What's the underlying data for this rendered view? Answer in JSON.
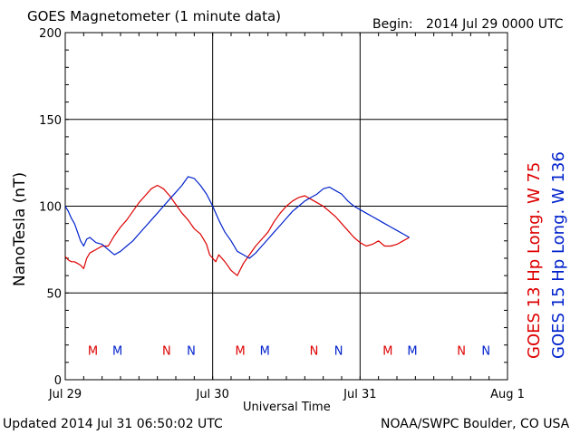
{
  "header": {
    "title": "GOES Magnetometer (1 minute data)",
    "begin_label": "Begin:",
    "begin_value": "2014 Jul 29 0000 UTC"
  },
  "footer": {
    "updated": "Updated 2014 Jul 31 06:50:02 UTC",
    "source": "NOAA/SWPC Boulder, CO USA"
  },
  "colors": {
    "goes13": "#dd0000",
    "goes15": "#0022cc",
    "grid": "#000000"
  },
  "chart_data": {
    "type": "line",
    "title": "GOES Magnetometer (1 minute data)",
    "xlabel": "Universal Time",
    "ylabel": "NanoTesla (nT)",
    "ylim": [
      0,
      200
    ],
    "yticks": [
      0,
      50,
      100,
      150,
      200
    ],
    "xlim": [
      0,
      72
    ],
    "xticks": [
      {
        "x": 0,
        "label": "Jul 29"
      },
      {
        "x": 24,
        "label": "Jul 30"
      },
      {
        "x": 48,
        "label": "Jul 31"
      },
      {
        "x": 72,
        "label": "Aug 1"
      }
    ],
    "grid": true,
    "series": [
      {
        "name": "GOES 13 Hp",
        "legend": "GOES 13 Hp   Long. W 75",
        "color": "#dd0000",
        "x": [
          0,
          0.5,
          1,
          1.5,
          2,
          2.5,
          3,
          3.5,
          4,
          5,
          6,
          7,
          8,
          9,
          10,
          11,
          12,
          13,
          14,
          15,
          16,
          17,
          18,
          19,
          20,
          21,
          22,
          23,
          23.5,
          24,
          24.5,
          25,
          26,
          27,
          28,
          29,
          30,
          31,
          32,
          33,
          34,
          35,
          36,
          37,
          38,
          39,
          40,
          41,
          42,
          43,
          44,
          45,
          46,
          47,
          48,
          49,
          50,
          51,
          52,
          53,
          54,
          55,
          56
        ],
        "values": [
          71,
          69,
          68,
          68,
          67,
          66,
          64,
          70,
          73,
          75,
          77,
          77,
          83,
          88,
          92,
          97,
          102,
          106,
          110,
          112,
          110,
          106,
          101,
          96,
          92,
          87,
          84,
          78,
          72,
          70,
          68,
          72,
          68,
          63,
          60,
          67,
          72,
          77,
          81,
          85,
          91,
          96,
          100,
          103,
          105,
          106,
          104,
          102,
          100,
          97,
          94,
          90,
          86,
          82,
          79,
          77,
          78,
          80,
          77,
          77,
          78,
          80,
          82
        ]
      },
      {
        "name": "GOES 15 Hp",
        "legend": "GOES 15 Hp   Long. W 136",
        "color": "#0022cc",
        "x": [
          0,
          0.5,
          1,
          1.5,
          2,
          2.5,
          3,
          3.5,
          4,
          5,
          6,
          7,
          8,
          9,
          10,
          11,
          12,
          13,
          14,
          15,
          16,
          17,
          18,
          19,
          20,
          21,
          22,
          23,
          24,
          25,
          26,
          27,
          28,
          29,
          30,
          31,
          32,
          33,
          34,
          35,
          36,
          37,
          38,
          39,
          40,
          41,
          42,
          43,
          44,
          45,
          46,
          47,
          48,
          49,
          50,
          51,
          52,
          53,
          54,
          55,
          56
        ],
        "values": [
          100,
          97,
          93,
          90,
          85,
          80,
          77,
          81,
          82,
          79,
          78,
          75,
          72,
          74,
          77,
          80,
          84,
          88,
          92,
          96,
          100,
          104,
          108,
          112,
          117,
          116,
          112,
          107,
          100,
          92,
          85,
          80,
          74,
          72,
          70,
          73,
          77,
          81,
          85,
          89,
          93,
          97,
          100,
          103,
          105,
          107,
          110,
          111,
          109,
          107,
          103,
          100,
          98,
          96,
          94,
          92,
          90,
          88,
          86,
          84,
          82
        ]
      }
    ],
    "markers": [
      {
        "x": 4.5,
        "label": "M",
        "color": "#dd0000"
      },
      {
        "x": 8.5,
        "label": "M",
        "color": "#0022cc"
      },
      {
        "x": 16.5,
        "label": "N",
        "color": "#dd0000"
      },
      {
        "x": 20.5,
        "label": "N",
        "color": "#0022cc"
      },
      {
        "x": 28.5,
        "label": "M",
        "color": "#dd0000"
      },
      {
        "x": 32.5,
        "label": "M",
        "color": "#0022cc"
      },
      {
        "x": 40.5,
        "label": "N",
        "color": "#dd0000"
      },
      {
        "x": 44.5,
        "label": "N",
        "color": "#0022cc"
      },
      {
        "x": 52.5,
        "label": "M",
        "color": "#dd0000"
      },
      {
        "x": 56.5,
        "label": "M",
        "color": "#0022cc"
      },
      {
        "x": 64.5,
        "label": "N",
        "color": "#dd0000"
      },
      {
        "x": 68.5,
        "label": "N",
        "color": "#0022cc"
      }
    ],
    "marker_y": 17
  }
}
